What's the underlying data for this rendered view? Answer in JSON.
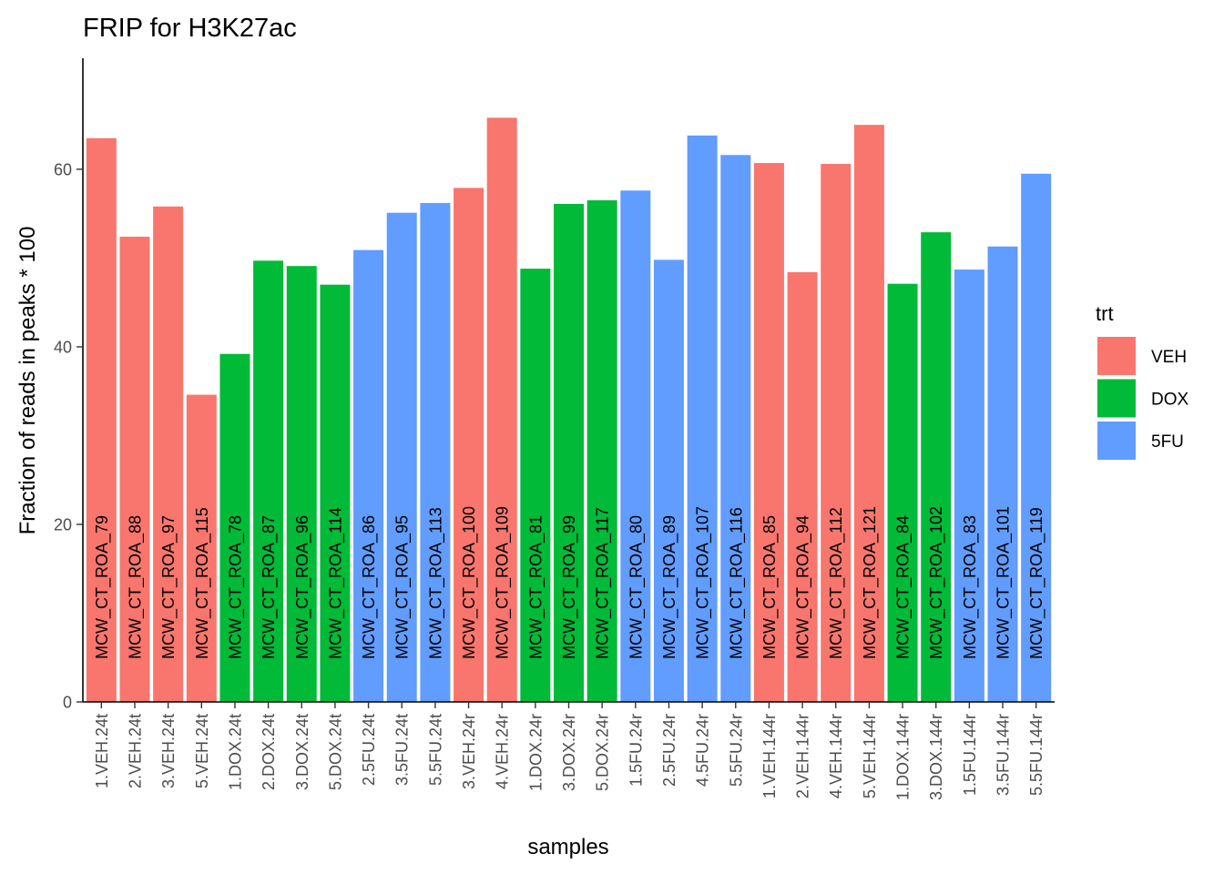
{
  "chart_data": {
    "type": "bar",
    "title": "FRIP for H3K27ac",
    "xlabel": "samples",
    "ylabel": "Fraction of reads in peaks * 100",
    "ylim": [
      0,
      72.5
    ],
    "yticks": [
      0,
      20,
      40,
      60
    ],
    "grid": false,
    "legend": {
      "title": "trt",
      "placement": "right",
      "entries": [
        {
          "name": "VEH",
          "color": "#F8766D"
        },
        {
          "name": "DOX",
          "color": "#00BA38"
        },
        {
          "name": "5FU",
          "color": "#619CFF"
        }
      ]
    },
    "categories": [
      "1.VEH.24t",
      "2.VEH.24t",
      "3.VEH.24t",
      "5.VEH.24t",
      "1.DOX.24t",
      "2.DOX.24t",
      "3.DOX.24t",
      "5.DOX.24t",
      "2.5FU.24t",
      "3.5FU.24t",
      "5.5FU.24t",
      "3.VEH.24r",
      "4.VEH.24r",
      "1.DOX.24r",
      "3.DOX.24r",
      "5.DOX.24r",
      "1.5FU.24r",
      "2.5FU.24r",
      "4.5FU.24r",
      "5.5FU.24r",
      "1.VEH.144r",
      "2.VEH.144r",
      "4.VEH.144r",
      "5.VEH.144r",
      "1.DOX.144r",
      "3.DOX.144r",
      "1.5FU.144r",
      "3.5FU.144r",
      "5.5FU.144r"
    ],
    "values": [
      63.5,
      52.4,
      55.8,
      34.6,
      39.2,
      49.7,
      49.1,
      47.0,
      50.9,
      55.1,
      56.2,
      57.9,
      65.8,
      48.8,
      56.1,
      56.5,
      57.6,
      49.8,
      63.8,
      61.6,
      60.7,
      48.4,
      60.6,
      65.0,
      47.1,
      52.9,
      48.7,
      51.3,
      59.5
    ],
    "treatment": [
      "VEH",
      "VEH",
      "VEH",
      "VEH",
      "DOX",
      "DOX",
      "DOX",
      "DOX",
      "5FU",
      "5FU",
      "5FU",
      "VEH",
      "VEH",
      "DOX",
      "DOX",
      "DOX",
      "5FU",
      "5FU",
      "5FU",
      "5FU",
      "VEH",
      "VEH",
      "VEH",
      "VEH",
      "DOX",
      "DOX",
      "5FU",
      "5FU",
      "5FU"
    ],
    "bar_labels": [
      "MCW_CT_ROA_79",
      "MCW_CT_ROA_88",
      "MCW_CT_ROA_97",
      "MCW_CT_ROA_115",
      "MCW_CT_ROA_78",
      "MCW_CT_ROA_87",
      "MCW_CT_ROA_96",
      "MCW_CT_ROA_114",
      "MCW_CT_ROA_86",
      "MCW_CT_ROA_95",
      "MCW_CT_ROA_113",
      "MCW_CT_ROA_100",
      "MCW_CT_ROA_109",
      "MCW_CT_ROA_81",
      "MCW_CT_ROA_99",
      "MCW_CT_ROA_117",
      "MCW_CT_ROA_80",
      "MCW_CT_ROA_89",
      "MCW_CT_ROA_107",
      "MCW_CT_ROA_116",
      "MCW_CT_ROA_85",
      "MCW_CT_ROA_94",
      "MCW_CT_ROA_112",
      "MCW_CT_ROA_121",
      "MCW_CT_ROA_84",
      "MCW_CT_ROA_102",
      "MCW_CT_ROA_83",
      "MCW_CT_ROA_101",
      "MCW_CT_ROA_119"
    ]
  }
}
